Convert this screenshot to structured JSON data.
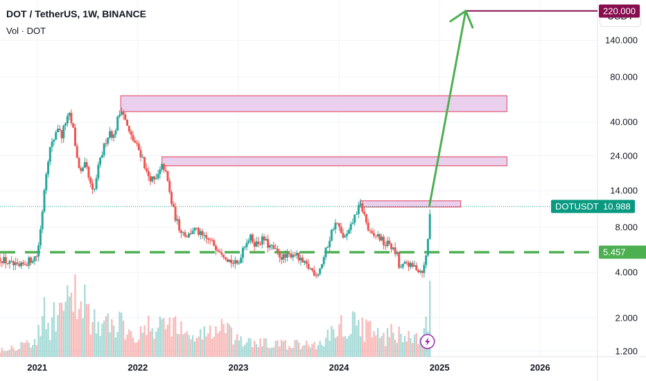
{
  "header": {
    "title": "DOT / TetherUS, 1W, BINANCE",
    "volume_label": "Vol · DOT",
    "currency_button": "USDT"
  },
  "colors": {
    "up": "#26a69a",
    "down": "#ef5350",
    "zone_fill": "#e6c8ea",
    "zone_border": "#e0405a",
    "arrow": "#4caf50",
    "support": "#4caf50",
    "target": "#880e4f",
    "price": "#089981"
  },
  "price_tag": {
    "symbol": "DOTUSDT",
    "value": "10.988"
  },
  "support_tag": "5.457",
  "target_tag": "220.000",
  "chart_data": {
    "type": "candlestick",
    "scale": "log",
    "ylim": [
      1.1,
      260
    ],
    "yticks": [
      {
        "value": 140,
        "label": "140.000"
      },
      {
        "value": 80,
        "label": "80.000"
      },
      {
        "value": 40,
        "label": "40.000"
      },
      {
        "value": 24,
        "label": "24.000"
      },
      {
        "value": 14,
        "label": "14.000"
      },
      {
        "value": 8,
        "label": "8.000"
      },
      {
        "value": 4,
        "label": "4.000"
      },
      {
        "value": 2,
        "label": "2.000"
      },
      {
        "value": 1.2,
        "label": "1.200"
      }
    ],
    "xlim": [
      2020.63,
      2026.57
    ],
    "xticks": [
      {
        "value": 2021.0,
        "label": "2021"
      },
      {
        "value": 2022.0,
        "label": "2022"
      },
      {
        "value": 2023.0,
        "label": "2023"
      },
      {
        "value": 2024.0,
        "label": "2024"
      },
      {
        "value": 2025.0,
        "label": "2025"
      },
      {
        "value": 2026.0,
        "label": "2026"
      }
    ],
    "current_price": 10.988,
    "support_level": 5.457,
    "target_level": 220,
    "resistance_zones": [
      {
        "x0": 2021.83,
        "x1": 2025.67,
        "y0": 47,
        "y1": 60
      },
      {
        "x0": 2022.24,
        "x1": 2025.67,
        "y0": 20.5,
        "y1": 23.5
      },
      {
        "x0": 2024.21,
        "x1": 2025.21,
        "y0": 10.9,
        "y1": 12.0
      }
    ],
    "projection_arrow": {
      "x0": 2024.9,
      "y0": 11.2,
      "x1": 2025.26,
      "y1": 220
    },
    "price_path": [
      [
        2020.63,
        5.0
      ],
      [
        2020.72,
        4.6
      ],
      [
        2020.82,
        4.3
      ],
      [
        2020.92,
        4.8
      ],
      [
        2021.0,
        5.2
      ],
      [
        2021.04,
        8.5
      ],
      [
        2021.08,
        17
      ],
      [
        2021.12,
        26
      ],
      [
        2021.16,
        30
      ],
      [
        2021.2,
        38
      ],
      [
        2021.24,
        32
      ],
      [
        2021.28,
        40
      ],
      [
        2021.32,
        44
      ],
      [
        2021.36,
        35
      ],
      [
        2021.4,
        22
      ],
      [
        2021.44,
        18
      ],
      [
        2021.48,
        21
      ],
      [
        2021.52,
        16
      ],
      [
        2021.56,
        13
      ],
      [
        2021.6,
        19
      ],
      [
        2021.64,
        24
      ],
      [
        2021.68,
        30
      ],
      [
        2021.72,
        35
      ],
      [
        2021.76,
        32
      ],
      [
        2021.8,
        42
      ],
      [
        2021.84,
        50
      ],
      [
        2021.88,
        40
      ],
      [
        2021.92,
        33
      ],
      [
        2021.96,
        30
      ],
      [
        2022.0,
        27
      ],
      [
        2022.05,
        23
      ],
      [
        2022.09,
        18
      ],
      [
        2022.13,
        17
      ],
      [
        2022.17,
        16
      ],
      [
        2022.21,
        18
      ],
      [
        2022.25,
        21
      ],
      [
        2022.29,
        17
      ],
      [
        2022.33,
        12
      ],
      [
        2022.37,
        9.5
      ],
      [
        2022.41,
        8.0
      ],
      [
        2022.46,
        7.3
      ],
      [
        2022.5,
        7.0
      ],
      [
        2022.55,
        7.8
      ],
      [
        2022.6,
        7.4
      ],
      [
        2022.65,
        6.8
      ],
      [
        2022.7,
        6.6
      ],
      [
        2022.75,
        6.2
      ],
      [
        2022.8,
        5.8
      ],
      [
        2022.85,
        5.4
      ],
      [
        2022.9,
        4.9
      ],
      [
        2022.95,
        4.6
      ],
      [
        2023.0,
        4.5
      ],
      [
        2023.04,
        5.8
      ],
      [
        2023.08,
        6.5
      ],
      [
        2023.12,
        6.8
      ],
      [
        2023.17,
        6.2
      ],
      [
        2023.21,
        6.4
      ],
      [
        2023.25,
        6.7
      ],
      [
        2023.3,
        6.0
      ],
      [
        2023.34,
        5.8
      ],
      [
        2023.38,
        5.4
      ],
      [
        2023.43,
        5.1
      ],
      [
        2023.47,
        5.0
      ],
      [
        2023.52,
        5.3
      ],
      [
        2023.56,
        5.4
      ],
      [
        2023.6,
        4.9
      ],
      [
        2023.64,
        4.6
      ],
      [
        2023.7,
        4.3
      ],
      [
        2023.74,
        4.1
      ],
      [
        2023.78,
        3.9
      ],
      [
        2023.82,
        4.4
      ],
      [
        2023.86,
        5.3
      ],
      [
        2023.9,
        6.5
      ],
      [
        2023.94,
        8.0
      ],
      [
        2023.98,
        8.6
      ],
      [
        2024.02,
        7.2
      ],
      [
        2024.06,
        6.8
      ],
      [
        2024.1,
        7.4
      ],
      [
        2024.14,
        8.8
      ],
      [
        2024.18,
        10.4
      ],
      [
        2024.22,
        11.2
      ],
      [
        2024.26,
        9.2
      ],
      [
        2024.3,
        7.3
      ],
      [
        2024.34,
        6.9
      ],
      [
        2024.38,
        7.1
      ],
      [
        2024.42,
        6.6
      ],
      [
        2024.46,
        6.1
      ],
      [
        2024.5,
        6.3
      ],
      [
        2024.54,
        5.6
      ],
      [
        2024.58,
        5.2
      ],
      [
        2024.6,
        4.2
      ],
      [
        2024.64,
        4.4
      ],
      [
        2024.68,
        4.7
      ],
      [
        2024.72,
        4.3
      ],
      [
        2024.76,
        4.4
      ],
      [
        2024.8,
        4.1
      ],
      [
        2024.84,
        4.2
      ],
      [
        2024.86,
        4.8
      ],
      [
        2024.88,
        6.2
      ],
      [
        2024.9,
        9.4
      ],
      [
        2024.92,
        11.0
      ]
    ],
    "volume_path": [
      [
        2020.63,
        0.08
      ],
      [
        2021.0,
        0.18
      ],
      [
        2021.08,
        0.62
      ],
      [
        2021.12,
        0.3
      ],
      [
        2021.2,
        0.45
      ],
      [
        2021.35,
        0.55
      ],
      [
        2021.44,
        0.7
      ],
      [
        2021.6,
        0.3
      ],
      [
        2021.84,
        0.35
      ],
      [
        2022.0,
        0.25
      ],
      [
        2022.35,
        0.38
      ],
      [
        2022.5,
        0.2
      ],
      [
        2022.85,
        0.3
      ],
      [
        2023.0,
        0.15
      ],
      [
        2023.5,
        0.12
      ],
      [
        2023.8,
        0.12
      ],
      [
        2023.95,
        0.3
      ],
      [
        2024.2,
        0.35
      ],
      [
        2024.4,
        0.2
      ],
      [
        2024.6,
        0.25
      ],
      [
        2024.82,
        0.15
      ],
      [
        2024.9,
        0.55
      ],
      [
        2024.93,
        0.4
      ]
    ]
  }
}
